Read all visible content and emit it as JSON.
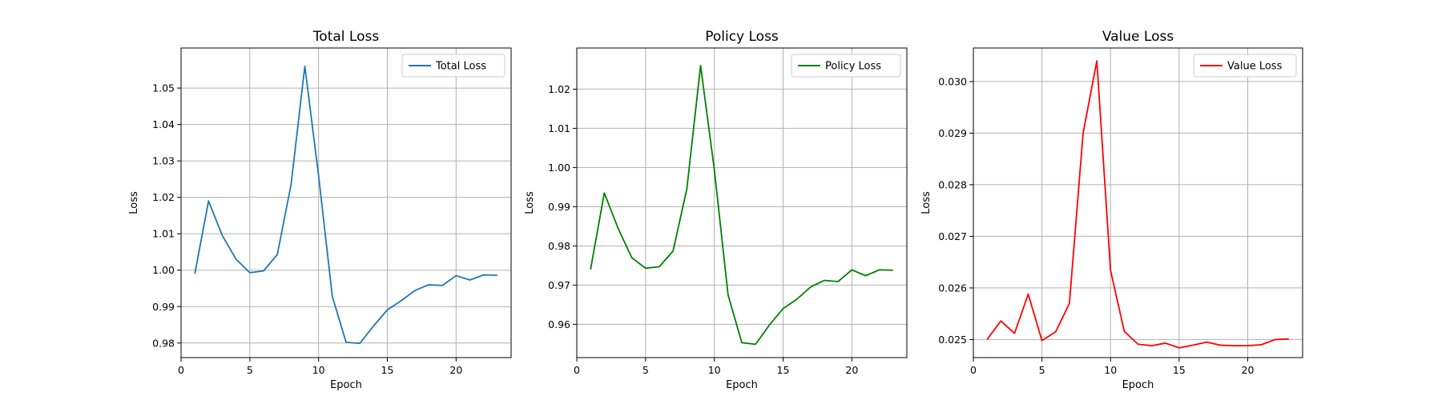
{
  "chart_data": [
    {
      "type": "line",
      "title": "Total Loss",
      "xlabel": "Epoch",
      "ylabel": "Loss",
      "xlim": [
        0,
        24
      ],
      "ylim": [
        0.976,
        1.061
      ],
      "xticks": [
        0,
        5,
        10,
        15,
        20
      ],
      "yticks": [
        0.98,
        0.99,
        1.0,
        1.01,
        1.02,
        1.03,
        1.04,
        1.05
      ],
      "ytick_decimals": 2,
      "grid": true,
      "legend": "top-right",
      "series": [
        {
          "name": "Total Loss",
          "color": "#1f77b4",
          "x": [
            1,
            2,
            3,
            4,
            5,
            6,
            7,
            8,
            9,
            10,
            11,
            12,
            13,
            14,
            15,
            16,
            17,
            18,
            19,
            20,
            21,
            22,
            23
          ],
          "y": [
            0.999,
            1.019,
            1.0095,
            1.003,
            0.9993,
            0.9998,
            1.0043,
            1.0235,
            1.056,
            1.026,
            0.9928,
            0.9802,
            0.9799,
            0.9847,
            0.9891,
            0.9916,
            0.9944,
            0.996,
            0.9958,
            0.9985,
            0.9973,
            0.9987,
            0.9986
          ]
        }
      ]
    },
    {
      "type": "line",
      "title": "Policy Loss",
      "xlabel": "Epoch",
      "ylabel": "Loss",
      "xlim": [
        0,
        24
      ],
      "ylim": [
        0.9515,
        1.0305
      ],
      "xticks": [
        0,
        5,
        10,
        15,
        20
      ],
      "yticks": [
        0.96,
        0.97,
        0.98,
        0.99,
        1.0,
        1.01,
        1.02
      ],
      "ytick_decimals": 2,
      "grid": true,
      "legend": "top-right",
      "series": [
        {
          "name": "Policy Loss",
          "color": "#008000",
          "x": [
            1,
            2,
            3,
            4,
            5,
            6,
            7,
            8,
            9,
            10,
            11,
            12,
            13,
            14,
            15,
            16,
            17,
            18,
            19,
            20,
            21,
            22,
            23
          ],
          "y": [
            0.974,
            0.9935,
            0.9845,
            0.977,
            0.9743,
            0.9747,
            0.9787,
            0.9945,
            1.026,
            0.9995,
            0.9675,
            0.9553,
            0.9549,
            0.9598,
            0.964,
            0.9664,
            0.9695,
            0.9712,
            0.9709,
            0.9739,
            0.9724,
            0.9739,
            0.9738
          ]
        }
      ]
    },
    {
      "type": "line",
      "title": "Value Loss",
      "xlabel": "Epoch",
      "ylabel": "Loss",
      "xlim": [
        0,
        24
      ],
      "ylim": [
        0.02465,
        0.03065
      ],
      "xticks": [
        0,
        5,
        10,
        15,
        20
      ],
      "yticks": [
        0.025,
        0.026,
        0.027,
        0.028,
        0.029,
        0.03
      ],
      "ytick_decimals": 3,
      "grid": true,
      "legend": "top-right",
      "series": [
        {
          "name": "Value Loss",
          "color": "#ff0000",
          "x": [
            1,
            2,
            3,
            4,
            5,
            6,
            7,
            8,
            9,
            10,
            11,
            12,
            13,
            14,
            15,
            16,
            17,
            18,
            19,
            20,
            21,
            22,
            23
          ],
          "y": [
            0.025,
            0.02536,
            0.02512,
            0.02588,
            0.02498,
            0.02515,
            0.0257,
            0.029,
            0.0304,
            0.02634,
            0.02516,
            0.02491,
            0.02488,
            0.02493,
            0.02484,
            0.02489,
            0.02495,
            0.02489,
            0.02488,
            0.02488,
            0.0249,
            0.025,
            0.02501
          ]
        }
      ]
    }
  ]
}
